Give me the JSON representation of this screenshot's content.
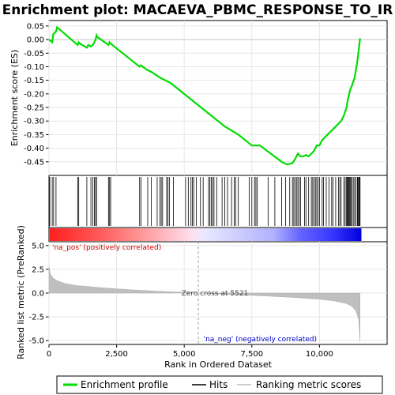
{
  "chart_data": {
    "type": "line",
    "title": "Enrichment plot: MACAEVA_PBMC_RESPONSE_TO_IR",
    "xlabel": "Rank in Ordered Dataset",
    "ylabel_top": "Enrichment score (ES)",
    "ylabel_bottom": "Ranked list metric (PreRanked)",
    "xlim": [
      0,
      12500
    ],
    "x_ticks": [
      0,
      2500,
      5000,
      7500,
      10000
    ],
    "x_tick_labels": [
      "0",
      "2,500",
      "5,000",
      "7,500",
      "10,000"
    ],
    "es_ylim": [
      -0.5,
      0.07
    ],
    "es_ticks": [
      0.05,
      0.0,
      -0.05,
      -0.1,
      -0.15,
      -0.2,
      -0.25,
      -0.3,
      -0.35,
      -0.4,
      -0.45
    ],
    "es_tick_labels": [
      "0.05",
      "0.00",
      "-0.05",
      "-0.10",
      "-0.15",
      "-0.20",
      "-0.25",
      "-0.30",
      "-0.35",
      "-0.40",
      "-0.45"
    ],
    "metric_ylim": [
      -5.4,
      5.4
    ],
    "metric_ticks": [
      5.0,
      2.5,
      0.0,
      -2.5,
      -5.0
    ],
    "metric_tick_labels": [
      "5.0",
      "2.5",
      "0.0",
      "-2.5",
      "-5.0"
    ],
    "series": [
      {
        "name": "Enrichment profile",
        "color": "#00dd00",
        "x": [
          0,
          120,
          160,
          260,
          300,
          1060,
          1100,
          1140,
          1400,
          1450,
          1550,
          1620,
          1680,
          1720,
          1760,
          1780,
          2200,
          2240,
          2280,
          3350,
          3400,
          3600,
          3800,
          4100,
          4500,
          5000,
          5500,
          6000,
          6500,
          7000,
          7500,
          7800,
          8200,
          8600,
          8800,
          9000,
          9100,
          9200,
          9300,
          9400,
          9500,
          9600,
          9700,
          9800,
          9900,
          10000,
          10100,
          10200,
          10300,
          10400,
          10500,
          10600,
          10700,
          10800,
          10900,
          11000,
          11050,
          11100,
          11150,
          11200,
          11300,
          11350,
          11400,
          11450,
          11500
        ],
        "y": [
          0.0,
          -0.01,
          0.02,
          0.03,
          0.045,
          -0.02,
          -0.01,
          -0.015,
          -0.03,
          -0.02,
          -0.025,
          -0.02,
          -0.01,
          0.0,
          0.015,
          0.01,
          -0.02,
          -0.01,
          -0.015,
          -0.1,
          -0.095,
          -0.11,
          -0.12,
          -0.14,
          -0.16,
          -0.2,
          -0.24,
          -0.28,
          -0.32,
          -0.35,
          -0.39,
          -0.39,
          -0.42,
          -0.45,
          -0.46,
          -0.455,
          -0.44,
          -0.42,
          -0.43,
          -0.43,
          -0.425,
          -0.43,
          -0.42,
          -0.41,
          -0.39,
          -0.39,
          -0.37,
          -0.36,
          -0.35,
          -0.34,
          -0.33,
          -0.32,
          -0.31,
          -0.3,
          -0.28,
          -0.25,
          -0.22,
          -0.2,
          -0.18,
          -0.17,
          -0.14,
          -0.11,
          -0.08,
          -0.04,
          0.005
        ]
      }
    ],
    "hits_label": "Hits",
    "hits": [
      30,
      120,
      170,
      260,
      1060,
      1100,
      1400,
      1550,
      1620,
      1680,
      1720,
      1760,
      2200,
      2240,
      2280,
      3350,
      3400,
      3650,
      3780,
      4000,
      4100,
      4150,
      4200,
      4350,
      4400,
      4450,
      4600,
      5050,
      5150,
      5250,
      5300,
      5350,
      5450,
      5600,
      5700,
      5900,
      5950,
      6000,
      6050,
      6100,
      6200,
      6400,
      6500,
      6600,
      6750,
      6850,
      6900,
      7000,
      7400,
      7500,
      7600,
      7650,
      7700,
      8100,
      8350,
      8600,
      8750,
      8900,
      9000,
      9050,
      9100,
      9150,
      9200,
      9250,
      9300,
      9450,
      9500,
      9600,
      9700,
      9750,
      9800,
      9850,
      9900,
      9950,
      10000,
      10100,
      10150,
      10250,
      10350,
      10450,
      10500,
      10600,
      10700,
      10750,
      10800,
      10900,
      10950,
      11000,
      11020,
      11050,
      11070,
      11100,
      11130,
      11160,
      11200,
      11250,
      11300,
      11350,
      11400,
      11420,
      11450,
      11480,
      11500
    ],
    "ranking_label": "Ranking metric scores",
    "metric_values": {
      "x": [
        0,
        50,
        150,
        300,
        600,
        1000,
        2000,
        3000,
        4000,
        5000,
        5521,
        6000,
        7000,
        8000,
        9000,
        10000,
        10500,
        11000,
        11200,
        11350,
        11450,
        11500
      ],
      "y": [
        2.8,
        2.0,
        1.6,
        1.3,
        1.0,
        0.8,
        0.55,
        0.35,
        0.2,
        0.08,
        0.0,
        -0.05,
        -0.18,
        -0.3,
        -0.45,
        -0.65,
        -0.8,
        -1.1,
        -1.4,
        -1.9,
        -2.8,
        -5.1
      ]
    },
    "zero_cross_rank": 5521,
    "annotations": {
      "pos": "'na_pos' (positively correlated)",
      "neg": "'na_neg' (negatively correlated)",
      "zero": "Zero cross at 5521"
    },
    "colors": {
      "enrichment": "#00dd00",
      "pos_label": "#cc0000",
      "neg_label": "#0000cc",
      "metric_fill": "#bfbfbf",
      "heat_red": "#ff0000",
      "heat_blue": "#0000ff"
    }
  },
  "legend": {
    "enrichment": "Enrichment profile",
    "hits": "Hits",
    "ranking": "Ranking metric scores"
  }
}
